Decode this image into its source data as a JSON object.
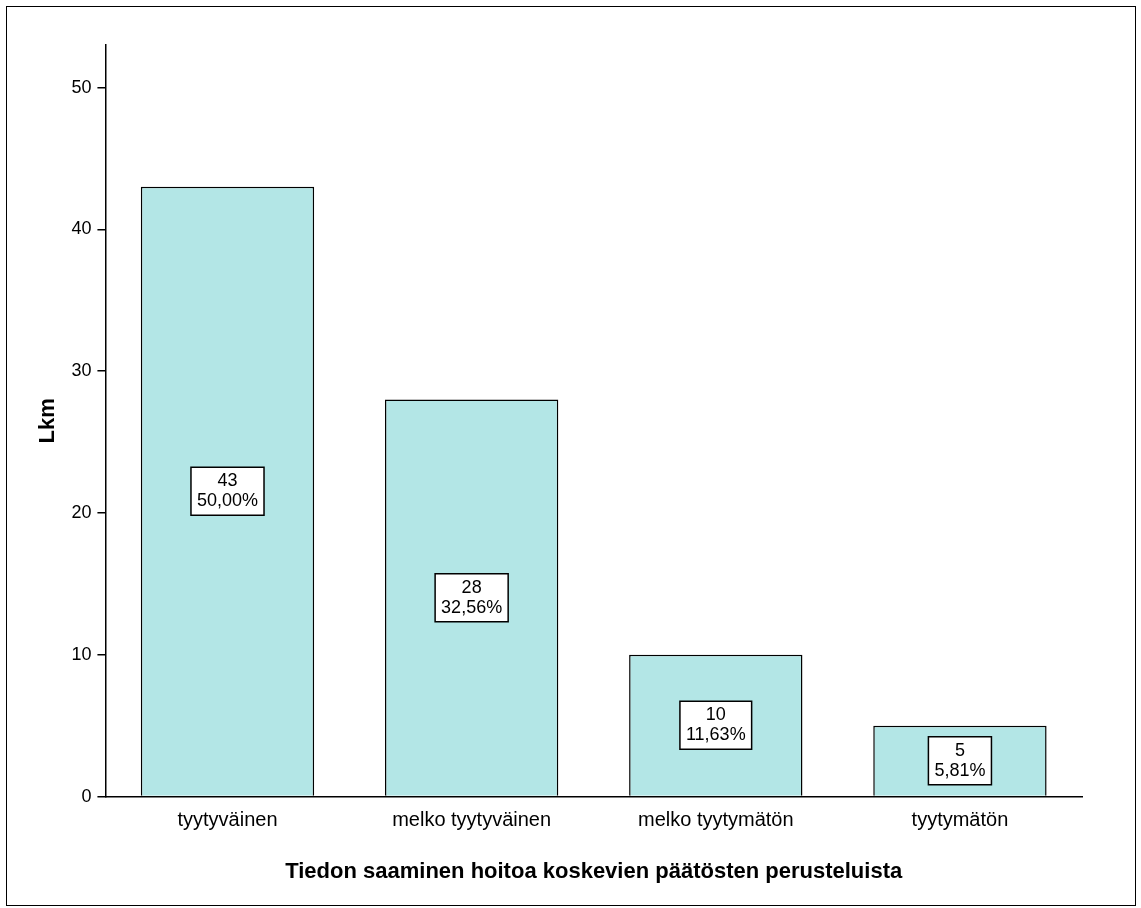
{
  "chart_data": {
    "type": "bar",
    "xlabel": "Tiedon saaminen hoitoa koskevien päätösten perusteluista",
    "ylabel": "Lkm",
    "categories": [
      "tyytyväinen",
      "melko tyytyväinen",
      "melko tyytymätön",
      "tyytymätön"
    ],
    "values": [
      43,
      28,
      10,
      5
    ],
    "value_labels": [
      "43\n50,00%",
      "28\n32,56%",
      "10\n11,63%",
      "5\n5,81%"
    ],
    "color": "#b3e6e6",
    "ylim": [
      0,
      53
    ],
    "yticks": [
      0,
      10,
      20,
      30,
      40,
      50
    ],
    "grid": false,
    "legend": false
  }
}
